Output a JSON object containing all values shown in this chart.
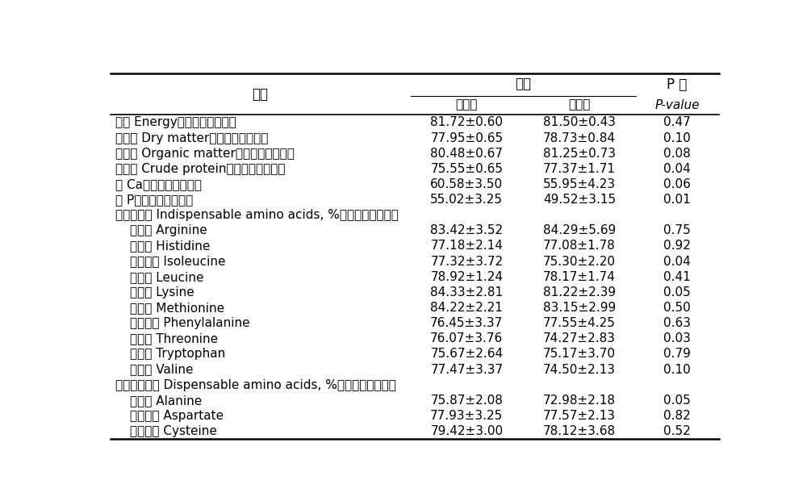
{
  "header_col": "指标",
  "header_proc": "处理",
  "header_exp": "试验组",
  "header_ctrl": "对照组",
  "header_p1": "P 值",
  "header_p2": "P-value",
  "rows": [
    {
      "label": "能量 Energy（全消化道水平）",
      "exp": "81.72±0.60",
      "ctrl": "81.50±0.43",
      "p": "0.47",
      "indent": false,
      "section": false
    },
    {
      "label": "干物质 Dry matter（全消化道水平）",
      "exp": "77.95±0.65",
      "ctrl": "78.73±0.84",
      "p": "0.10",
      "indent": false,
      "section": false
    },
    {
      "label": "有机物 Organic matter（全消化道水平）",
      "exp": "80.48±0.67",
      "ctrl": "81.25±0.73",
      "p": "0.08",
      "indent": false,
      "section": false
    },
    {
      "label": "粗蛋白 Crude protein（全消化道水平）",
      "exp": "75.55±0.65",
      "ctrl": "77.37±1.71",
      "p": "0.04",
      "indent": false,
      "section": false
    },
    {
      "label": "钙 Ca（全消化道水平）",
      "exp": "60.58±3.50",
      "ctrl": "55.95±4.23",
      "p": "0.06",
      "indent": false,
      "section": false
    },
    {
      "label": "磷 P（全消化道水平）",
      "exp": "55.02±3.25",
      "ctrl": "49.52±3.15",
      "p": "0.01",
      "indent": false,
      "section": false
    },
    {
      "label": "必需氨基酸 Indispensable amino acids, %（回肠末端水平）",
      "exp": "",
      "ctrl": "",
      "p": "",
      "indent": false,
      "section": true
    },
    {
      "label": "精氨酸 Arginine",
      "exp": "83.42±3.52",
      "ctrl": "84.29±5.69",
      "p": "0.75",
      "indent": true,
      "section": false
    },
    {
      "label": "组氨酸 Histidine",
      "exp": "77.18±2.14",
      "ctrl": "77.08±1.78",
      "p": "0.92",
      "indent": true,
      "section": false
    },
    {
      "label": "异亮氨酸 Isoleucine",
      "exp": "77.32±3.72",
      "ctrl": "75.30±2.20",
      "p": "0.04",
      "indent": true,
      "section": false
    },
    {
      "label": "亮氨酸 Leucine",
      "exp": "78.92±1.24",
      "ctrl": "78.17±1.74",
      "p": "0.41",
      "indent": true,
      "section": false
    },
    {
      "label": "赖氨酸 Lysine",
      "exp": "84.33±2.81",
      "ctrl": "81.22±2.39",
      "p": "0.05",
      "indent": true,
      "section": false
    },
    {
      "label": "蛋氨酸 Methionine",
      "exp": "84.22±2.21",
      "ctrl": "83.15±2.99",
      "p": "0.50",
      "indent": true,
      "section": false
    },
    {
      "label": "苯丙氨酸 Phenylalanine",
      "exp": "76.45±3.37",
      "ctrl": "77.55±4.25",
      "p": "0.63",
      "indent": true,
      "section": false
    },
    {
      "label": "苏氨酸 Threonine",
      "exp": "76.07±3.76",
      "ctrl": "74.27±2.83",
      "p": "0.03",
      "indent": true,
      "section": false
    },
    {
      "label": "色氨酸 Tryptophan",
      "exp": "75.67±2.64",
      "ctrl": "75.17±3.70",
      "p": "0.79",
      "indent": true,
      "section": false
    },
    {
      "label": "缬氨酸 Valine",
      "exp": "77.47±3.37",
      "ctrl": "74.50±2.13",
      "p": "0.10",
      "indent": true,
      "section": false
    },
    {
      "label": "非必需氨基酸 Dispensable amino acids, %（回肠末端水平）",
      "exp": "",
      "ctrl": "",
      "p": "",
      "indent": false,
      "section": true
    },
    {
      "label": "丙氨酸 Alanine",
      "exp": "75.87±2.08",
      "ctrl": "72.98±2.18",
      "p": "0.05",
      "indent": true,
      "section": false
    },
    {
      "label": "天冬氨酸 Aspartate",
      "exp": "77.93±3.25",
      "ctrl": "77.57±2.13",
      "p": "0.82",
      "indent": true,
      "section": false
    },
    {
      "label": "半胱氨酸 Cysteine",
      "exp": "79.42±3.00",
      "ctrl": "78.12±3.68",
      "p": "0.52",
      "indent": true,
      "section": false
    }
  ],
  "bg_color": "#ffffff",
  "text_color": "#000000",
  "line_color": "#000000",
  "font_size": 11,
  "header_font_size": 12
}
